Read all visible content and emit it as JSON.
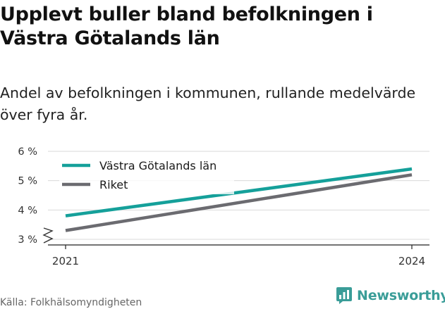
{
  "title": "Upplevt buller bland befolkningen i Västra Götalands län",
  "subtitle": "Andel av befolkningen i kommunen, rullande medelvärde över fyra år.",
  "source": "Källa: Folkhälsomyndigheten",
  "brand": "Newsworthy",
  "colors": {
    "region": "#15a09a",
    "country": "#6b6b70",
    "brand": "#3a9d98"
  },
  "chart_data": {
    "type": "line",
    "title": "Upplevt buller bland befolkningen i Västra Götalands län",
    "x": [
      2021,
      2024
    ],
    "x_ticks": [
      "2021",
      "2024"
    ],
    "y_ticks": [
      "3 %",
      "4 %",
      "5 %",
      "6 %"
    ],
    "ylim": [
      3,
      6
    ],
    "y_axis_break": true,
    "grid": true,
    "legend_position": "top-left",
    "series": [
      {
        "name": "Västra Götalands län",
        "values": [
          3.8,
          5.4
        ],
        "color": "#15a09a"
      },
      {
        "name": "Riket",
        "values": [
          3.3,
          5.2
        ],
        "color": "#6b6b70"
      }
    ]
  }
}
